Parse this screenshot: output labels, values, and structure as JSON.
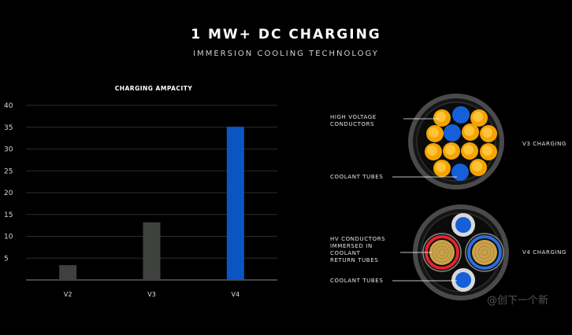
{
  "header": {
    "title": "1 MW+ DC CHARGING",
    "subtitle": "IMMERSION COOLING TECHNOLOGY"
  },
  "chart_data": {
    "type": "bar",
    "title": "CHARGING AMPACITY",
    "categories": [
      "V2",
      "V3",
      "V4"
    ],
    "values": [
      3.4,
      13.2,
      35.1
    ],
    "yticks": [
      5,
      10,
      15,
      20,
      25,
      30,
      35,
      40
    ],
    "ylim": [
      0,
      40
    ],
    "colors": [
      "#3f413f",
      "#3f413f",
      "#0a55c2"
    ],
    "grid": true
  },
  "diagram": {
    "v3": {
      "label_high_voltage": "HIGH VOLTAGE\nCONDUCTORS",
      "label_coolant": "COOLANT TUBES",
      "side_label": "V3 CHARGING"
    },
    "v4": {
      "label_hv_immersed": "HV CONDUCTORS\nIMMERSED IN\nCOOLANT\nRETURN TUBES",
      "label_coolant": "COOLANT TUBES",
      "side_label": "V4 CHARGING"
    },
    "colors": {
      "jacket": "#4a4a4a",
      "conductor": "#f5a300",
      "coolant": "#1560d8",
      "red_ring": "#e1252b",
      "blue_ring": "#2a6fe0",
      "copper": "#c9a24a"
    }
  },
  "watermark": "@创下一个新"
}
